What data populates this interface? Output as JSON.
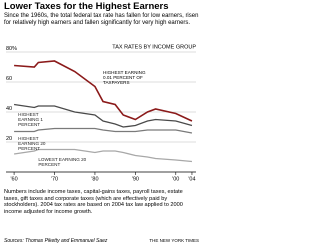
{
  "chart_data": {
    "type": "line",
    "title": "Lower Taxes for the Highest Earners",
    "subtitle": "Since the 1960s, the total federal tax rate has fallen for low earners, risen for relatively high earners and fallen significantly for very high earners.",
    "legend_title": "TAX RATES BY INCOME GROUP",
    "x": [
      1960,
      1965,
      1966,
      1970,
      1975,
      1980,
      1982,
      1985,
      1987,
      1990,
      1993,
      1995,
      2000,
      2004
    ],
    "series": [
      {
        "name": "HIGHEST EARNING 0.01 PERCENT OF TAXPAYERS",
        "color": "#8b1a1a",
        "values": [
          71,
          70,
          73,
          74,
          67,
          57,
          47,
          45,
          38,
          35,
          40,
          42,
          39,
          34
        ]
      },
      {
        "name": "HIGHEST EARNING 1 PERCENT",
        "color": "#4a4a4a",
        "values": [
          45,
          43,
          44,
          44,
          40,
          38,
          34,
          32,
          30,
          31,
          34,
          35,
          34,
          31
        ]
      },
      {
        "name": "HIGHEST EARNING 20 PERCENT",
        "color": "#7a7a7a",
        "values": [
          27,
          27,
          28,
          29,
          29,
          29,
          28,
          27,
          27,
          27,
          28,
          28,
          28,
          26
        ]
      },
      {
        "name": "LOWEST EARNING 20 PERCENT",
        "color": "#a8a8a8",
        "values": [
          12,
          14,
          15,
          15,
          15,
          13,
          14,
          14,
          13,
          11,
          10,
          9,
          8,
          7
        ]
      }
    ],
    "xlim": [
      1958,
      2005
    ],
    "xticks": [
      {
        "value": 1960,
        "label": "'60"
      },
      {
        "value": 1970,
        "label": "'70"
      },
      {
        "value": 1980,
        "label": "'80"
      },
      {
        "value": 1990,
        "label": "'90"
      },
      {
        "value": 2000,
        "label": "'00"
      },
      {
        "value": 2004,
        "label": "'04"
      }
    ],
    "ylim": [
      0,
      80
    ],
    "yticks": [
      {
        "value": 80,
        "label": "80%"
      },
      60,
      40,
      20
    ],
    "grid": true,
    "note": "Numbers include income taxes, capital-gains taxes, payroll taxes, estate taxes, gift taxes and corporate taxes (which are effectively paid by stockholders). 2004 tax rates are based on 2004 tax law applied to 2000 income adjusted for income growth.",
    "source": "Sources: Thomas Piketty and Emmanuel Saez",
    "credit": "THE NEW YORK TIMES"
  }
}
